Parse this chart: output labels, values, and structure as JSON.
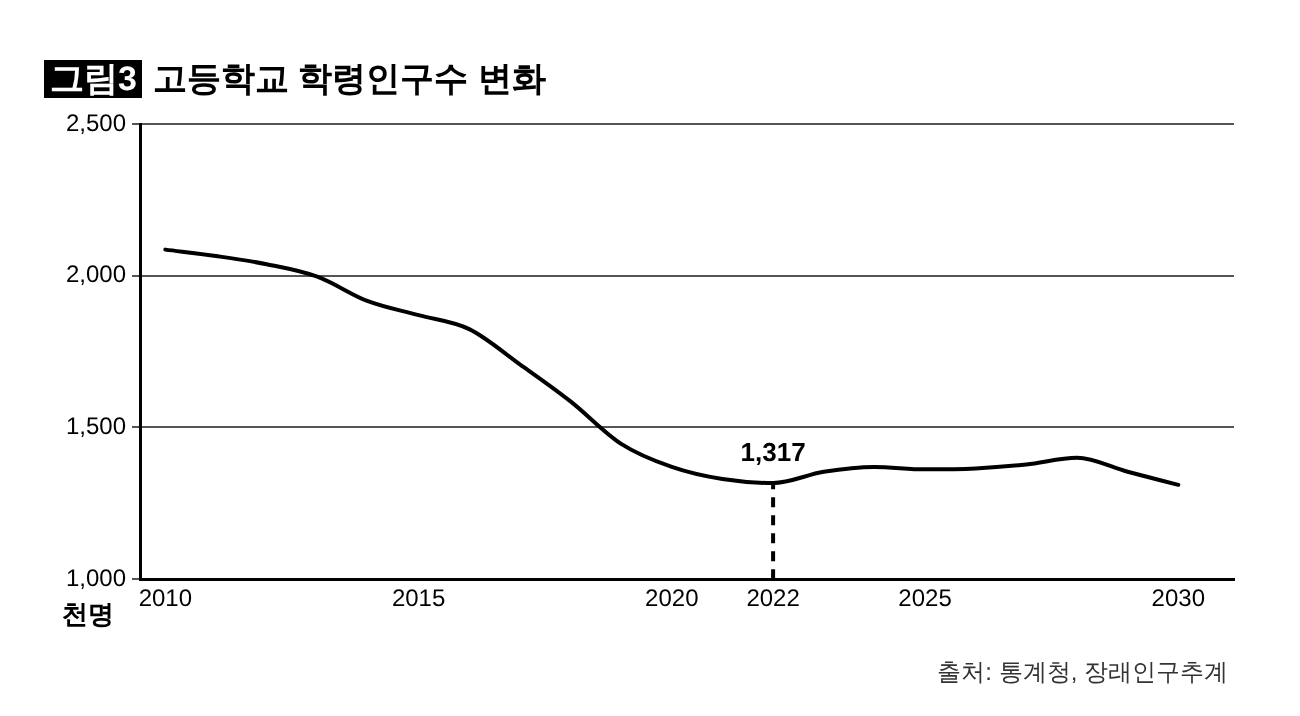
{
  "chart_data": {
    "type": "line",
    "title": "그림3 고등학교 학령인구수 변화",
    "ylabel": "천명",
    "x": [
      2010,
      2011,
      2012,
      2013,
      2014,
      2015,
      2016,
      2017,
      2018,
      2019,
      2020,
      2021,
      2022,
      2023,
      2024,
      2025,
      2026,
      2027,
      2028,
      2029,
      2030
    ],
    "series": [
      {
        "color": "#000000",
        "values": [
          2086,
          2065,
          2038,
          1997,
          1916,
          1870,
          1824,
          1708,
          1586,
          1446,
          1370,
          1330,
          1317,
          1354,
          1370,
          1362,
          1365,
          1378,
          1400,
          1354,
          1311
        ]
      }
    ],
    "xlim": [
      2009.5,
      2031.1
    ],
    "xticks": [
      2010,
      2015,
      2020,
      2022,
      2025,
      2030
    ],
    "ylim": [
      1000,
      2500
    ],
    "yticks": [
      {
        "value": 1000,
        "label": "1,000"
      },
      {
        "value": 1500,
        "label": "1,500"
      },
      {
        "value": 2000,
        "label": "2,000"
      },
      {
        "value": 2500,
        "label": "2,500"
      }
    ],
    "grid": "y",
    "legend": false,
    "marker": "none",
    "line_style": "solid",
    "ref_lines": [
      {
        "axis": "x",
        "value": 2022,
        "line_style": "dashed",
        "color": "#000000"
      }
    ],
    "annotations": [
      {
        "text": "1,317",
        "x": 2022,
        "y": 1317
      },
      "출처: 통계청, 장래인구추계"
    ]
  }
}
